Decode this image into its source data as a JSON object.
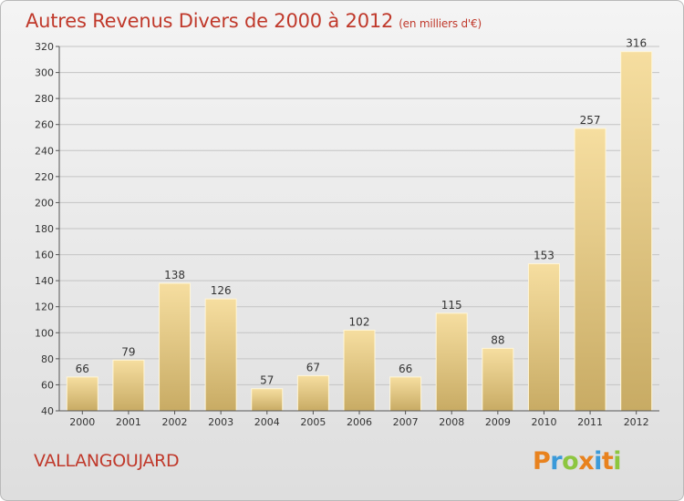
{
  "header": {
    "title": "Autres Revenus Divers de 2000 à 2012",
    "subtitle": "(en milliers d'€)"
  },
  "footer": {
    "place": "VALLANGOUJARD",
    "logo": [
      "P",
      "r",
      "o",
      "x",
      "i",
      "t",
      "i"
    ]
  },
  "colors": {
    "title": "#c0392b",
    "bar_light": "#f6dea0",
    "bar_dark": "#c8ab64",
    "logo": [
      "#e8821e",
      "#3b9ad9",
      "#8dc63f",
      "#e8821e",
      "#3b9ad9",
      "#e8821e",
      "#8dc63f"
    ]
  },
  "chart_data": {
    "type": "bar",
    "categories": [
      "2000",
      "2001",
      "2002",
      "2003",
      "2004",
      "2005",
      "2006",
      "2007",
      "2008",
      "2009",
      "2010",
      "2011",
      "2012"
    ],
    "values": [
      66,
      79,
      138,
      126,
      57,
      67,
      102,
      66,
      115,
      88,
      153,
      257,
      316
    ],
    "title": "Autres Revenus Divers de 2000 à 2012",
    "ylim": [
      40,
      320
    ],
    "yticks": [
      40,
      60,
      80,
      100,
      120,
      140,
      160,
      180,
      200,
      220,
      240,
      260,
      280,
      300,
      320
    ],
    "grid": true,
    "data_labels": true
  }
}
